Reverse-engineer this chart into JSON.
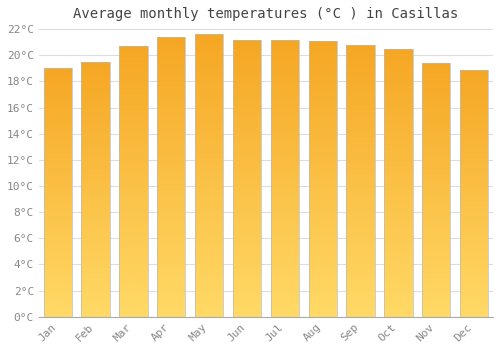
{
  "title": "Average monthly temperatures (°C ) in Casillas",
  "months": [
    "Jan",
    "Feb",
    "Mar",
    "Apr",
    "May",
    "Jun",
    "Jul",
    "Aug",
    "Sep",
    "Oct",
    "Nov",
    "Dec"
  ],
  "values": [
    19.0,
    19.5,
    20.7,
    21.4,
    21.6,
    21.2,
    21.2,
    21.1,
    20.8,
    20.5,
    19.4,
    18.9
  ],
  "bar_color": "#F5A623",
  "bar_gradient_top": "#F5A623",
  "bar_gradient_bottom": "#FFD966",
  "bar_edge_color": "#CCCCCC",
  "background_color": "#FFFFFF",
  "grid_color": "#DDDDDD",
  "ylim": [
    0,
    22
  ],
  "yticks": [
    0,
    2,
    4,
    6,
    8,
    10,
    12,
    14,
    16,
    18,
    20,
    22
  ],
  "title_fontsize": 10,
  "tick_fontsize": 8,
  "tick_color": "#888888",
  "title_color": "#444444"
}
